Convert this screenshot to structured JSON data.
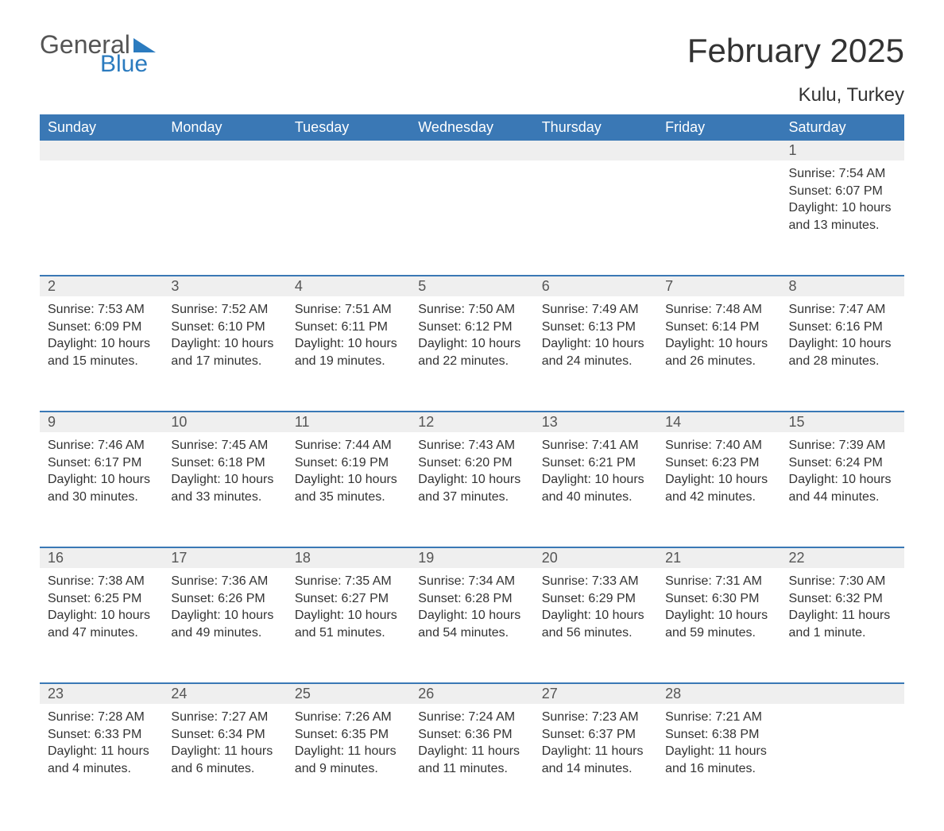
{
  "logo": {
    "text1": "General",
    "text2": "Blue",
    "accent_color": "#2b7bbf"
  },
  "title": "February 2025",
  "location": "Kulu, Turkey",
  "header_bg": "#3a78b5",
  "header_text_color": "#ffffff",
  "day_strip_bg": "#efefef",
  "text_color": "#333333",
  "days_of_week": [
    "Sunday",
    "Monday",
    "Tuesday",
    "Wednesday",
    "Thursday",
    "Friday",
    "Saturday"
  ],
  "weeks": [
    [
      null,
      null,
      null,
      null,
      null,
      null,
      {
        "n": "1",
        "sunrise": "Sunrise: 7:54 AM",
        "sunset": "Sunset: 6:07 PM",
        "daylight": "Daylight: 10 hours and 13 minutes."
      }
    ],
    [
      {
        "n": "2",
        "sunrise": "Sunrise: 7:53 AM",
        "sunset": "Sunset: 6:09 PM",
        "daylight": "Daylight: 10 hours and 15 minutes."
      },
      {
        "n": "3",
        "sunrise": "Sunrise: 7:52 AM",
        "sunset": "Sunset: 6:10 PM",
        "daylight": "Daylight: 10 hours and 17 minutes."
      },
      {
        "n": "4",
        "sunrise": "Sunrise: 7:51 AM",
        "sunset": "Sunset: 6:11 PM",
        "daylight": "Daylight: 10 hours and 19 minutes."
      },
      {
        "n": "5",
        "sunrise": "Sunrise: 7:50 AM",
        "sunset": "Sunset: 6:12 PM",
        "daylight": "Daylight: 10 hours and 22 minutes."
      },
      {
        "n": "6",
        "sunrise": "Sunrise: 7:49 AM",
        "sunset": "Sunset: 6:13 PM",
        "daylight": "Daylight: 10 hours and 24 minutes."
      },
      {
        "n": "7",
        "sunrise": "Sunrise: 7:48 AM",
        "sunset": "Sunset: 6:14 PM",
        "daylight": "Daylight: 10 hours and 26 minutes."
      },
      {
        "n": "8",
        "sunrise": "Sunrise: 7:47 AM",
        "sunset": "Sunset: 6:16 PM",
        "daylight": "Daylight: 10 hours and 28 minutes."
      }
    ],
    [
      {
        "n": "9",
        "sunrise": "Sunrise: 7:46 AM",
        "sunset": "Sunset: 6:17 PM",
        "daylight": "Daylight: 10 hours and 30 minutes."
      },
      {
        "n": "10",
        "sunrise": "Sunrise: 7:45 AM",
        "sunset": "Sunset: 6:18 PM",
        "daylight": "Daylight: 10 hours and 33 minutes."
      },
      {
        "n": "11",
        "sunrise": "Sunrise: 7:44 AM",
        "sunset": "Sunset: 6:19 PM",
        "daylight": "Daylight: 10 hours and 35 minutes."
      },
      {
        "n": "12",
        "sunrise": "Sunrise: 7:43 AM",
        "sunset": "Sunset: 6:20 PM",
        "daylight": "Daylight: 10 hours and 37 minutes."
      },
      {
        "n": "13",
        "sunrise": "Sunrise: 7:41 AM",
        "sunset": "Sunset: 6:21 PM",
        "daylight": "Daylight: 10 hours and 40 minutes."
      },
      {
        "n": "14",
        "sunrise": "Sunrise: 7:40 AM",
        "sunset": "Sunset: 6:23 PM",
        "daylight": "Daylight: 10 hours and 42 minutes."
      },
      {
        "n": "15",
        "sunrise": "Sunrise: 7:39 AM",
        "sunset": "Sunset: 6:24 PM",
        "daylight": "Daylight: 10 hours and 44 minutes."
      }
    ],
    [
      {
        "n": "16",
        "sunrise": "Sunrise: 7:38 AM",
        "sunset": "Sunset: 6:25 PM",
        "daylight": "Daylight: 10 hours and 47 minutes."
      },
      {
        "n": "17",
        "sunrise": "Sunrise: 7:36 AM",
        "sunset": "Sunset: 6:26 PM",
        "daylight": "Daylight: 10 hours and 49 minutes."
      },
      {
        "n": "18",
        "sunrise": "Sunrise: 7:35 AM",
        "sunset": "Sunset: 6:27 PM",
        "daylight": "Daylight: 10 hours and 51 minutes."
      },
      {
        "n": "19",
        "sunrise": "Sunrise: 7:34 AM",
        "sunset": "Sunset: 6:28 PM",
        "daylight": "Daylight: 10 hours and 54 minutes."
      },
      {
        "n": "20",
        "sunrise": "Sunrise: 7:33 AM",
        "sunset": "Sunset: 6:29 PM",
        "daylight": "Daylight: 10 hours and 56 minutes."
      },
      {
        "n": "21",
        "sunrise": "Sunrise: 7:31 AM",
        "sunset": "Sunset: 6:30 PM",
        "daylight": "Daylight: 10 hours and 59 minutes."
      },
      {
        "n": "22",
        "sunrise": "Sunrise: 7:30 AM",
        "sunset": "Sunset: 6:32 PM",
        "daylight": "Daylight: 11 hours and 1 minute."
      }
    ],
    [
      {
        "n": "23",
        "sunrise": "Sunrise: 7:28 AM",
        "sunset": "Sunset: 6:33 PM",
        "daylight": "Daylight: 11 hours and 4 minutes."
      },
      {
        "n": "24",
        "sunrise": "Sunrise: 7:27 AM",
        "sunset": "Sunset: 6:34 PM",
        "daylight": "Daylight: 11 hours and 6 minutes."
      },
      {
        "n": "25",
        "sunrise": "Sunrise: 7:26 AM",
        "sunset": "Sunset: 6:35 PM",
        "daylight": "Daylight: 11 hours and 9 minutes."
      },
      {
        "n": "26",
        "sunrise": "Sunrise: 7:24 AM",
        "sunset": "Sunset: 6:36 PM",
        "daylight": "Daylight: 11 hours and 11 minutes."
      },
      {
        "n": "27",
        "sunrise": "Sunrise: 7:23 AM",
        "sunset": "Sunset: 6:37 PM",
        "daylight": "Daylight: 11 hours and 14 minutes."
      },
      {
        "n": "28",
        "sunrise": "Sunrise: 7:21 AM",
        "sunset": "Sunset: 6:38 PM",
        "daylight": "Daylight: 11 hours and 16 minutes."
      },
      null
    ]
  ]
}
